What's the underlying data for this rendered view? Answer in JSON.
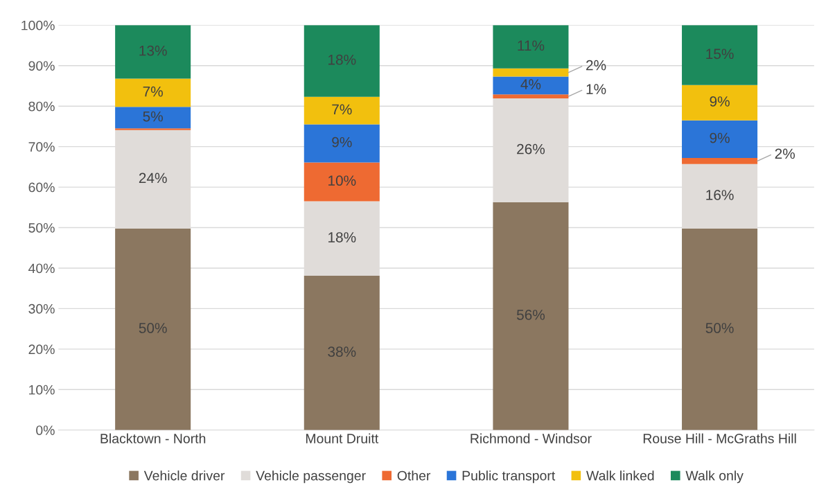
{
  "chart_data": {
    "type": "bar",
    "stacked": true,
    "categories": [
      "Blacktown - North",
      "Mount Druitt",
      "Richmond - Windsor",
      "Rouse Hill - McGraths Hill"
    ],
    "series": [
      {
        "name": "Vehicle driver",
        "color": "#8b7760",
        "values": [
          49.8,
          38.1,
          56.3,
          49.8
        ],
        "value_labels": [
          "50%",
          "38%",
          "56%",
          "50%"
        ]
      },
      {
        "name": "Vehicle passenger",
        "color": "#e0dcd9",
        "values": [
          24.3,
          18.4,
          25.6,
          15.9
        ],
        "value_labels": [
          "24%",
          "18%",
          "26%",
          "16%"
        ]
      },
      {
        "name": "Other",
        "color": "#ee6a32",
        "values": [
          0.4,
          9.6,
          1.0,
          1.5
        ],
        "value_labels": [
          null,
          "10%",
          "1%",
          "2%"
        ]
      },
      {
        "name": "Public transport",
        "color": "#2b75d8",
        "values": [
          5.3,
          9.4,
          4.4,
          9.3
        ],
        "value_labels": [
          "5%",
          "9%",
          "4%",
          "9%"
        ]
      },
      {
        "name": "Walk linked",
        "color": "#f2c00e",
        "values": [
          7.0,
          6.8,
          2.0,
          8.7
        ],
        "value_labels": [
          "7%",
          "7%",
          "2%",
          "9%"
        ]
      },
      {
        "name": "Walk only",
        "color": "#1c8a5c",
        "values": [
          13.2,
          17.7,
          10.7,
          14.8
        ],
        "value_labels": [
          "13%",
          "18%",
          "11%",
          "15%"
        ]
      }
    ],
    "ylim": [
      0,
      100
    ],
    "yticks": [
      {
        "value": 0,
        "label": "0%"
      },
      {
        "value": 10,
        "label": "10%"
      },
      {
        "value": 20,
        "label": "20%"
      },
      {
        "value": 30,
        "label": "30%"
      },
      {
        "value": 40,
        "label": "40%"
      },
      {
        "value": 50,
        "label": "50%"
      },
      {
        "value": 60,
        "label": "60%"
      },
      {
        "value": 70,
        "label": "70%"
      },
      {
        "value": 80,
        "label": "80%"
      },
      {
        "value": 90,
        "label": "90%"
      },
      {
        "value": 100,
        "label": "100%"
      }
    ],
    "grid": "y",
    "legend": "bottom"
  }
}
